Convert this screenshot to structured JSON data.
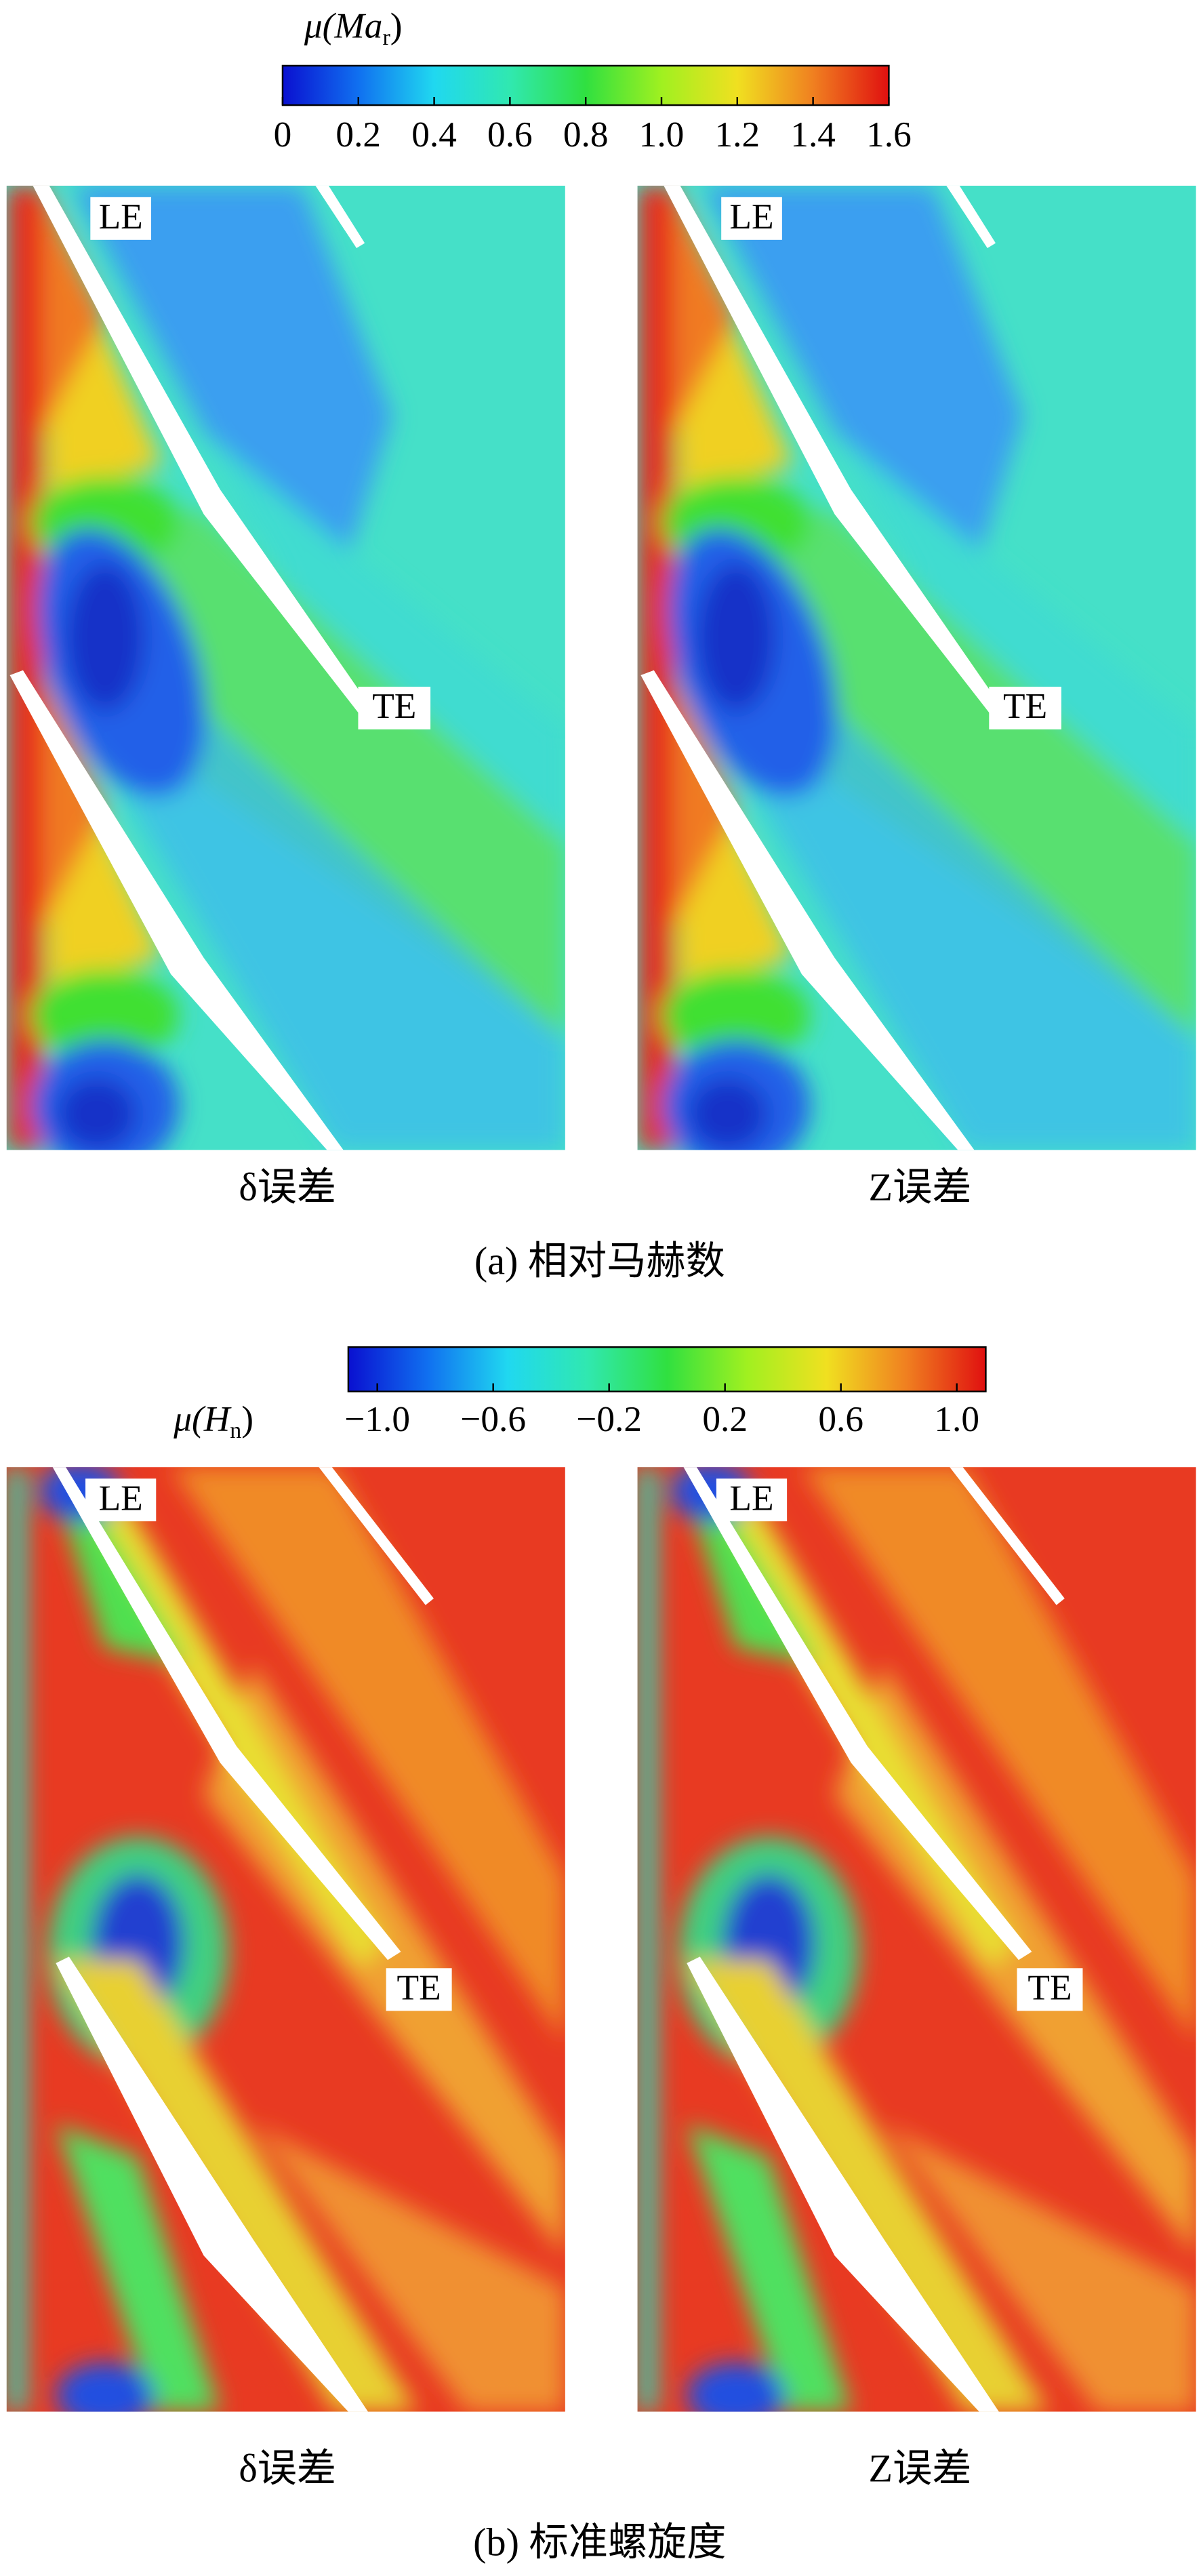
{
  "chart_data": [
    {
      "type": "contour",
      "caption": "(a) 相对马赫数",
      "colorbar_label": {
        "prefix": "μ(Ma",
        "subscript": "r",
        "suffix": ")"
      },
      "clim": [
        0,
        1.6
      ],
      "cticks": [
        0,
        0.2,
        0.4,
        0.6,
        0.8,
        {
          "value": 1,
          "label": "1.0"
        },
        1.2,
        1.4,
        1.6
      ],
      "colormap": [
        "#0a10d0",
        "#1070f0",
        "#20d8f0",
        "#30e8b0",
        "#30e040",
        "#a0f020",
        "#f0e020",
        "#f08020",
        "#e01010"
      ],
      "panels": [
        {
          "title": "δ误差",
          "annotations": [
            "LE",
            "TE"
          ]
        },
        {
          "title": "Z误差",
          "annotations": [
            "LE",
            "TE"
          ]
        }
      ]
    },
    {
      "type": "contour",
      "caption": "(b) 标准螺旋度",
      "colorbar_label": {
        "prefix": "μ(H",
        "subscript": "n",
        "suffix": ")"
      },
      "clim": [
        -1.1,
        1.1
      ],
      "cticks": [
        {
          "value": -1,
          "label": "−1.0"
        },
        {
          "value": -0.6,
          "label": "−0.6"
        },
        {
          "value": -0.2,
          "label": "−0.2"
        },
        0.2,
        0.6,
        {
          "value": 1,
          "label": "1.0"
        }
      ],
      "colormap": [
        "#0a10d0",
        "#1070f0",
        "#20d8f0",
        "#30e8b0",
        "#30e040",
        "#a0f020",
        "#f0e020",
        "#f08020",
        "#e01010"
      ],
      "panels": [
        {
          "title": "δ误差",
          "annotations": [
            "LE",
            "TE"
          ]
        },
        {
          "title": "Z误差",
          "annotations": [
            "LE",
            "TE"
          ]
        }
      ]
    }
  ]
}
